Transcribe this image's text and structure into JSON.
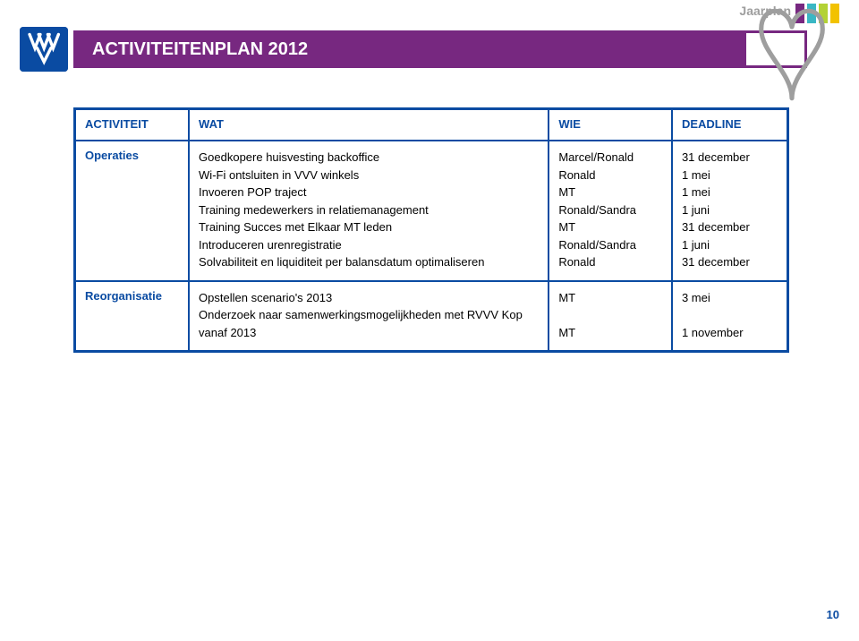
{
  "brand": {
    "top_label": "Jaarplan",
    "swatch_colors": [
      "#772880",
      "#3ab7c4",
      "#b3d235",
      "#f2c200"
    ]
  },
  "heart_stroke": "#9e9e9e",
  "logo_bg": "#0a4ba2",
  "title_bar": {
    "border_color": "#772880",
    "fill_color": "#772880",
    "title": "ACTIVITEITENPLAN 2012"
  },
  "table": {
    "border_color": "#0a4ba2",
    "header_color": "#0a4ba2",
    "columns": [
      "ACTIVITEIT",
      "WAT",
      "WIE",
      "DEADLINE"
    ],
    "col_widths": [
      "120px",
      "380px",
      "130px",
      "120px"
    ],
    "rows": [
      {
        "activiteit": "Operaties",
        "wat": [
          "Goedkopere huisvesting backoffice",
          "Wi-Fi ontsluiten in VVV winkels",
          "Invoeren POP traject",
          "Training medewerkers in relatiemanagement",
          "Training Succes met Elkaar MT leden",
          "Introduceren urenregistratie",
          "Solvabiliteit en liquiditeit per balansdatum optimaliseren"
        ],
        "wie": [
          "Marcel/Ronald",
          "Ronald",
          "MT",
          "Ronald/Sandra",
          "MT",
          "Ronald/Sandra",
          "Ronald"
        ],
        "deadline": [
          "31 december",
          "1 mei",
          "1 mei",
          "1 juni",
          "31 december",
          "1 juni",
          "31 december"
        ]
      },
      {
        "activiteit": "Reorganisatie",
        "wat": [
          "Opstellen scenario's 2013",
          "Onderzoek naar samenwerkingsmogelijkheden met RVVV Kop vanaf 2013"
        ],
        "wie": [
          "MT",
          "",
          "MT"
        ],
        "deadline": [
          "3 mei",
          "",
          "1 november"
        ]
      }
    ]
  },
  "page_number": "10"
}
